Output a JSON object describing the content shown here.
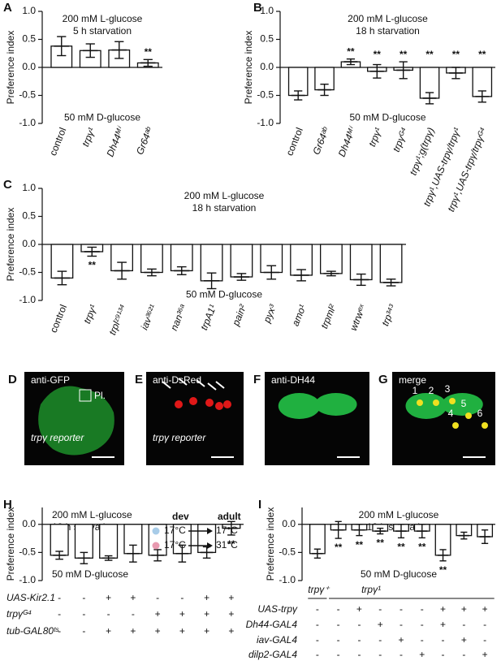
{
  "chart_data": [
    {
      "type": "bar",
      "panel": "A",
      "title_lines": [
        "200 mM L-glucose",
        "5 h starvation"
      ],
      "bottom_label": "50 mM D-glucose",
      "ylabel": "Preference index",
      "categories": [
        "control",
        "trpγ¹",
        "Dh44ᴹⁱ",
        "Gr64ᵃᵇ"
      ],
      "values": [
        0.38,
        0.3,
        0.31,
        0.08
      ],
      "errors": [
        0.17,
        0.12,
        0.15,
        0.06
      ],
      "annotations": [
        null,
        null,
        null,
        {
          "text": "**",
          "color": "#222222"
        }
      ],
      "ylim": [
        -1,
        1
      ],
      "yticks": [
        {
          "value": -1,
          "label": "-1.0"
        },
        -0.5,
        {
          "value": 0,
          "label": "0.0"
        },
        0.5,
        {
          "value": 1,
          "label": "1.0"
        }
      ]
    },
    {
      "type": "bar",
      "panel": "B",
      "title_lines": [
        "200 mM L-glucose",
        "18 h starvation"
      ],
      "bottom_label": "50 mM D-glucose",
      "ylabel": "Preference index",
      "categories": [
        "control",
        "Gr64ᵃᵇ",
        "Dh44ᴹⁱ",
        "trpγ¹",
        "trpγᴳ⁴",
        "trpγ¹;g(trpγ)",
        "trpγ¹,UAS-trpγ/trpγ¹",
        "trpγ¹,UAS-trpγ/trpγᴳ⁴"
      ],
      "values": [
        -0.5,
        -0.4,
        0.1,
        -0.07,
        -0.05,
        -0.55,
        -0.1,
        -0.52
      ],
      "errors": [
        0.08,
        0.1,
        0.05,
        0.12,
        0.15,
        0.1,
        0.1,
        0.1
      ],
      "annotations": [
        null,
        null,
        {
          "text": "**",
          "color": "#222222"
        },
        {
          "text": "**",
          "color": "#222222"
        },
        {
          "text": "**",
          "color": "#222222"
        },
        {
          "text": "**",
          "color": "#e0202a"
        },
        {
          "text": "**",
          "color": "#222222"
        },
        {
          "text": "**",
          "color": "#e0202a"
        }
      ],
      "ylim": [
        -1,
        1
      ],
      "yticks": [
        {
          "value": -1,
          "label": "-1.0"
        },
        -0.5,
        {
          "value": 0,
          "label": "0.0"
        },
        0.5,
        {
          "value": 1,
          "label": "1.0"
        }
      ]
    },
    {
      "type": "bar",
      "panel": "C",
      "title_lines": [
        "200 mM L-glucose",
        "18 h starvation"
      ],
      "bottom_label": "50 mM D-glucose",
      "ylabel": "Preference index",
      "categories": [
        "control",
        "trpγ¹",
        "trplᶻ⁹¹³⁴",
        "iav³⁶²¹",
        "nan³⁶ᵃ",
        "trpA1¹",
        "pain²",
        "pyx³",
        "amo¹",
        "trpml²",
        "wtrwᵉˣ",
        "trp³⁴³"
      ],
      "values": [
        -0.6,
        -0.13,
        -0.47,
        -0.5,
        -0.47,
        -0.65,
        -0.58,
        -0.5,
        -0.55,
        -0.52,
        -0.63,
        -0.68
      ],
      "errors": [
        0.12,
        0.08,
        0.15,
        0.06,
        0.07,
        0.14,
        0.06,
        0.12,
        0.1,
        0.04,
        0.1,
        0.06
      ],
      "annotations": [
        null,
        {
          "text": "**",
          "color": "#222222"
        },
        null,
        null,
        null,
        null,
        null,
        null,
        null,
        null,
        null,
        null
      ],
      "ylim": [
        -1,
        1
      ],
      "yticks": [
        {
          "value": -1,
          "label": "-1.0"
        },
        -0.5,
        {
          "value": 0,
          "label": "0.0"
        },
        0.5,
        {
          "value": 1,
          "label": "1.0"
        }
      ]
    },
    {
      "type": "bar",
      "panel": "H",
      "title_lines": [
        "200 mM L-glucose",
        "18 h starvation"
      ],
      "bottom_label": "50 mM D-glucose",
      "ylabel": "Preference index",
      "values": [
        -0.55,
        -0.6,
        -0.6,
        -0.52,
        -0.55,
        -0.52,
        -0.5,
        -0.07
      ],
      "errors": [
        0.07,
        0.1,
        0.04,
        0.15,
        0.1,
        0.15,
        0.1,
        0.12
      ],
      "annotations": [
        null,
        null,
        null,
        null,
        null,
        null,
        null,
        {
          "text": "**",
          "color": "#222222"
        }
      ],
      "legend_headers": [
        "dev",
        "adult"
      ],
      "legend": [
        {
          "color": "#a8cce8",
          "dev": "17°C",
          "adult": "17°C"
        },
        {
          "color": "#e89ab0",
          "dev": "17°C",
          "adult": "31°C"
        }
      ],
      "genotype_rows": [
        {
          "label": "UAS-Kir2.1",
          "cells": [
            "-",
            "-",
            "+",
            "+",
            "-",
            "-",
            "+",
            "+"
          ]
        },
        {
          "label": "trpγᴳ⁴",
          "cells": [
            "-",
            "-",
            "-",
            "-",
            "+",
            "+",
            "+",
            "+"
          ]
        },
        {
          "label": "tub-GAL80ᵗˢ",
          "cells": [
            "-",
            "-",
            "+",
            "+",
            "+",
            "+",
            "+",
            "+"
          ]
        }
      ],
      "ylim": [
        -1,
        0.3
      ],
      "yticks": [
        {
          "value": -1,
          "label": "-1.0"
        },
        -0.5,
        {
          "value": 0,
          "label": "0.0"
        }
      ]
    },
    {
      "type": "bar",
      "panel": "I",
      "title_lines": [
        "200 mM L-glucose",
        "18 h starvation"
      ],
      "bottom_label": "50 mM D-glucose",
      "ylabel": "Preference index",
      "values": [
        -0.52,
        -0.1,
        -0.1,
        -0.12,
        -0.12,
        -0.12,
        -0.55,
        -0.2,
        -0.22
      ],
      "errors": [
        0.08,
        0.15,
        0.1,
        0.05,
        0.12,
        0.12,
        0.1,
        0.06,
        0.12
      ],
      "annotations": [
        null,
        {
          "text": "**",
          "color": "#222222"
        },
        {
          "text": "**",
          "color": "#222222"
        },
        {
          "text": "**",
          "color": "#222222"
        },
        {
          "text": "**",
          "color": "#222222"
        },
        {
          "text": "**",
          "color": "#222222"
        },
        {
          "text": "**",
          "color": "#e0202a"
        },
        null,
        null
      ],
      "groups": [
        "trpγ⁺",
        "trpγ¹"
      ],
      "genotype_rows": [
        {
          "label": "UAS-trpγ",
          "cells": [
            "-",
            "-",
            "+",
            "-",
            "-",
            "-",
            "+",
            "+",
            "+"
          ]
        },
        {
          "label": "Dh44-GAL4",
          "cells": [
            "-",
            "-",
            "-",
            "+",
            "-",
            "-",
            "+",
            "-",
            "-"
          ]
        },
        {
          "label": "iav-GAL4",
          "cells": [
            "-",
            "-",
            "-",
            "-",
            "+",
            "-",
            "-",
            "+",
            "-"
          ]
        },
        {
          "label": "dilp2-GAL4",
          "cells": [
            "-",
            "-",
            "-",
            "-",
            "-",
            "+",
            "-",
            "-",
            "+"
          ]
        }
      ],
      "ylim": [
        -1,
        0.3
      ],
      "yticks": [
        {
          "value": -1,
          "label": "-1.0"
        },
        -0.5,
        {
          "value": 0,
          "label": "0.0"
        }
      ]
    }
  ],
  "image_panels": [
    {
      "panel": "D",
      "label": "anti-GFP",
      "caption": "trpγ reporter",
      "inset": "Pl."
    },
    {
      "panel": "E",
      "label": "anti-DsRed",
      "caption": "trpγ reporter"
    },
    {
      "panel": "F",
      "label": "anti-DH44"
    },
    {
      "panel": "G",
      "label": "merge",
      "numbers": [
        "1",
        "2",
        "3",
        "4",
        "5",
        "6"
      ]
    }
  ]
}
